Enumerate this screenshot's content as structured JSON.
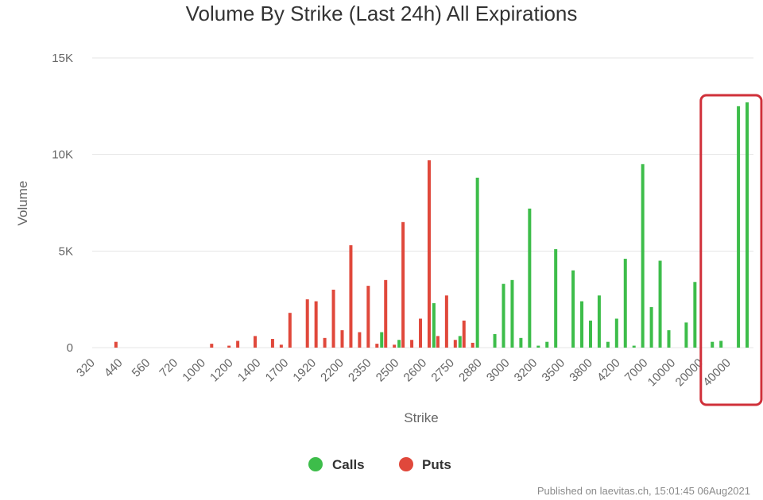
{
  "chart_data": {
    "type": "bar",
    "title": "Volume By Strike (Last 24h) All Expirations",
    "xlabel": "Strike",
    "ylabel": "Volume",
    "ylim": [
      0,
      15000
    ],
    "yticks": [
      0,
      5000,
      10000,
      15000
    ],
    "ytick_labels": [
      "0",
      "5K",
      "10K",
      "15K"
    ],
    "xtick_labels": [
      "320",
      "440",
      "560",
      "720",
      "1000",
      "1200",
      "1400",
      "1700",
      "1920",
      "2200",
      "2350",
      "2500",
      "2600",
      "2750",
      "2880",
      "3000",
      "3200",
      "3500",
      "3800",
      "4200",
      "7000",
      "10000",
      "20000",
      "40000"
    ],
    "grid": true,
    "legend_position": "bottom",
    "colors": {
      "calls": "#3dbd4a",
      "puts": "#e0483b",
      "highlight": "#d0303a"
    },
    "series": [
      {
        "name": "Calls",
        "points": [
          {
            "i": 33,
            "v": 800
          },
          {
            "i": 35,
            "v": 400
          },
          {
            "i": 39,
            "v": 2300
          },
          {
            "i": 42,
            "v": 600
          },
          {
            "i": 44,
            "v": 8800
          },
          {
            "i": 46,
            "v": 700
          },
          {
            "i": 47,
            "v": 3300
          },
          {
            "i": 48,
            "v": 3500
          },
          {
            "i": 49,
            "v": 500
          },
          {
            "i": 50,
            "v": 7200
          },
          {
            "i": 51,
            "v": 100
          },
          {
            "i": 52,
            "v": 300
          },
          {
            "i": 53,
            "v": 5100
          },
          {
            "i": 55,
            "v": 4000
          },
          {
            "i": 56,
            "v": 2400
          },
          {
            "i": 57,
            "v": 1400
          },
          {
            "i": 58,
            "v": 2700
          },
          {
            "i": 59,
            "v": 300
          },
          {
            "i": 60,
            "v": 1500
          },
          {
            "i": 61,
            "v": 4600
          },
          {
            "i": 62,
            "v": 100
          },
          {
            "i": 63,
            "v": 9500
          },
          {
            "i": 64,
            "v": 2100
          },
          {
            "i": 65,
            "v": 4500
          },
          {
            "i": 66,
            "v": 900
          },
          {
            "i": 68,
            "v": 1300
          },
          {
            "i": 69,
            "v": 3400
          },
          {
            "i": 71,
            "v": 300
          },
          {
            "i": 72,
            "v": 350
          },
          {
            "i": 74,
            "v": 12500
          },
          {
            "i": 75,
            "v": 12700
          }
        ]
      },
      {
        "name": "Puts",
        "points": [
          {
            "i": 2,
            "v": 300
          },
          {
            "i": 13,
            "v": 200
          },
          {
            "i": 15,
            "v": 100
          },
          {
            "i": 16,
            "v": 350
          },
          {
            "i": 18,
            "v": 600
          },
          {
            "i": 20,
            "v": 450
          },
          {
            "i": 21,
            "v": 150
          },
          {
            "i": 22,
            "v": 1800
          },
          {
            "i": 24,
            "v": 2500
          },
          {
            "i": 25,
            "v": 2400
          },
          {
            "i": 26,
            "v": 500
          },
          {
            "i": 27,
            "v": 3000
          },
          {
            "i": 28,
            "v": 900
          },
          {
            "i": 29,
            "v": 5300
          },
          {
            "i": 30,
            "v": 800
          },
          {
            "i": 31,
            "v": 3200
          },
          {
            "i": 32,
            "v": 200
          },
          {
            "i": 33,
            "v": 3500
          },
          {
            "i": 34,
            "v": 150
          },
          {
            "i": 35,
            "v": 6500
          },
          {
            "i": 36,
            "v": 400
          },
          {
            "i": 37,
            "v": 1500
          },
          {
            "i": 38,
            "v": 9700
          },
          {
            "i": 39,
            "v": 600
          },
          {
            "i": 40,
            "v": 2700
          },
          {
            "i": 41,
            "v": 400
          },
          {
            "i": 42,
            "v": 1400
          },
          {
            "i": 43,
            "v": 250
          }
        ]
      }
    ],
    "category_count": 76,
    "highlight_range": [
      70,
      75
    ]
  },
  "footer": "Published on laevitas.ch, 15:01:45 06Aug2021"
}
